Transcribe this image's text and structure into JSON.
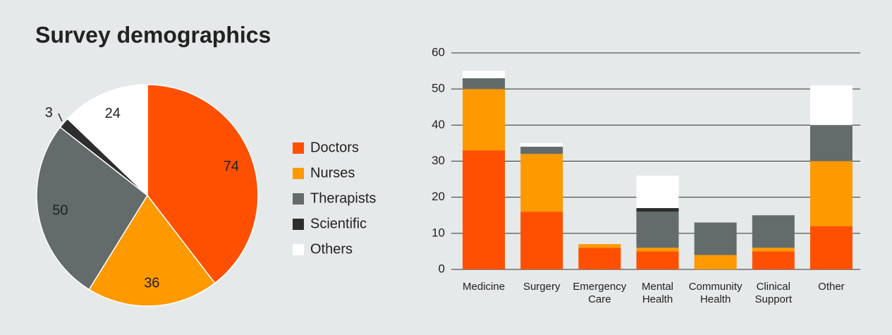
{
  "title": "Survey demographics",
  "chart_data": [
    {
      "type": "pie",
      "categories": [
        "Doctors",
        "Nurses",
        "Therapists",
        "Scientific",
        "Others"
      ],
      "values": [
        74,
        36,
        50,
        3,
        24
      ],
      "colors": [
        "#fe5000",
        "#fe9900",
        "#636b6b",
        "#2d2d2d",
        "#ffffff"
      ],
      "legend": "right"
    },
    {
      "type": "bar",
      "stacked": true,
      "categories": [
        "Medicine",
        "Surgery",
        "Emergency Care",
        "Mental Health",
        "Community Health",
        "Clinical Support",
        "Other"
      ],
      "series": [
        {
          "color": "#fe5000",
          "values": [
            33,
            16,
            6,
            5,
            0,
            5,
            12
          ]
        },
        {
          "color": "#fe9900",
          "values": [
            17,
            16,
            1,
            1,
            4,
            1,
            18
          ]
        },
        {
          "color": "#636b6b",
          "values": [
            3,
            2,
            0,
            10,
            9,
            9,
            10
          ]
        },
        {
          "color": "#2d2d2d",
          "values": [
            0,
            0,
            0,
            1,
            0,
            0,
            0
          ]
        },
        {
          "color": "#ffffff",
          "values": [
            2,
            1,
            0,
            9,
            0,
            0,
            11
          ]
        }
      ],
      "ylim": [
        0,
        60
      ],
      "yticks": [
        0,
        10,
        20,
        30,
        40,
        50,
        60
      ],
      "grid": true
    }
  ]
}
